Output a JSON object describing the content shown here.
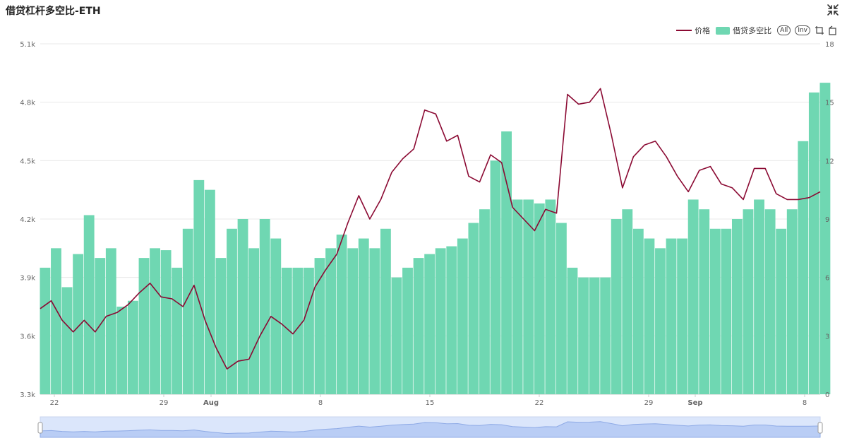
{
  "title": "借贷杠杆多空比-ETH",
  "legend": {
    "price_label": "价格",
    "ratio_label": "借贷多空比",
    "all_label": "All",
    "inv_label": "Inv"
  },
  "colors": {
    "price": "#8b0a33",
    "ratio": "#6fd7b2",
    "grid": "#e8e8e8"
  },
  "icons": [
    "collapse-icon",
    "zoom-select-icon",
    "zoom-reset-icon"
  ],
  "chart_data": {
    "type": "bar+line",
    "x_tick_labels": [
      "22",
      "29",
      "Aug",
      "8",
      "15",
      "22",
      "29",
      "Sep",
      "8"
    ],
    "y_left": {
      "lim": [
        3300,
        5100
      ],
      "ticks": [
        "3.3k",
        "3.6k",
        "3.9k",
        "4.2k",
        "4.5k",
        "4.8k",
        "5.1k"
      ]
    },
    "y_right": {
      "lim": [
        0,
        18
      ],
      "ticks": [
        "0",
        "3",
        "6",
        "9",
        "12",
        "15",
        "18"
      ]
    },
    "grid": true,
    "legend_position": "top-right",
    "series": [
      {
        "name": "价格",
        "type": "line",
        "axis": "left",
        "x": [
          0,
          2,
          4,
          6,
          8,
          10,
          12,
          14,
          16,
          18,
          20,
          22,
          24,
          26,
          28,
          30,
          32,
          34,
          36,
          38,
          40,
          42,
          44,
          46,
          48,
          50,
          52,
          54,
          56,
          58,
          60,
          62,
          64,
          66,
          68,
          70,
          72,
          74,
          76,
          78,
          80,
          82,
          84,
          86,
          88,
          90,
          92,
          94,
          96,
          98,
          100,
          102,
          104,
          106,
          108,
          110,
          112,
          114,
          116,
          118,
          120,
          122,
          124,
          126,
          128,
          130,
          132,
          134,
          136,
          138,
          140,
          142
        ],
        "values": [
          3740,
          3780,
          3680,
          3620,
          3680,
          3620,
          3700,
          3720,
          3760,
          3820,
          3870,
          3800,
          3790,
          3750,
          3860,
          3680,
          3540,
          3430,
          3470,
          3480,
          3600,
          3700,
          3660,
          3610,
          3680,
          3850,
          3940,
          4020,
          4180,
          4320,
          4200,
          4300,
          4440,
          4510,
          4560,
          4760,
          4740,
          4600,
          4630,
          4420,
          4390,
          4530,
          4490,
          4260,
          4200,
          4140,
          4250,
          4230,
          4840,
          4790,
          4800,
          4870,
          4630,
          4360,
          4520,
          4580,
          4600,
          4520,
          4420,
          4340,
          4450,
          4470,
          4380,
          4360,
          4300,
          4460,
          4460,
          4330,
          4300,
          4300,
          4310,
          4340
        ]
      },
      {
        "name": "借贷多空比",
        "type": "bar",
        "axis": "right",
        "x": [
          0,
          2,
          4,
          6,
          8,
          10,
          12,
          14,
          16,
          18,
          20,
          22,
          24,
          26,
          28,
          30,
          32,
          34,
          36,
          38,
          40,
          42,
          44,
          46,
          48,
          50,
          52,
          54,
          56,
          58,
          60,
          62,
          64,
          66,
          68,
          70,
          72,
          74,
          76,
          78,
          80,
          82,
          84,
          86,
          88,
          90,
          92,
          94,
          96,
          98,
          100,
          102,
          104,
          106,
          108,
          110,
          112,
          114,
          116,
          118,
          120,
          122,
          124,
          126,
          128,
          130,
          132,
          134,
          136,
          138,
          140,
          142
        ],
        "values": [
          6.5,
          7.5,
          5.5,
          7.2,
          9.2,
          7.0,
          7.5,
          4.5,
          4.8,
          7.0,
          7.5,
          7.4,
          6.5,
          8.5,
          11.0,
          10.5,
          7.0,
          8.5,
          9.0,
          7.5,
          9.0,
          8.0,
          6.5,
          6.5,
          6.5,
          7.0,
          7.5,
          8.2,
          7.5,
          8.0,
          7.5,
          8.5,
          6.0,
          6.5,
          7.0,
          7.2,
          7.5,
          7.6,
          8.0,
          8.8,
          9.5,
          12.0,
          13.5,
          10.0,
          10.0,
          9.8,
          10.0,
          8.8,
          6.5,
          6.0,
          6.0,
          6.0,
          9.0,
          9.5,
          8.5,
          8.0,
          7.5,
          8.0,
          8.0,
          10.0,
          9.5,
          8.5,
          8.5,
          9.0,
          9.5,
          10.0,
          9.5,
          8.5,
          9.5,
          13.0,
          15.5,
          16.0
        ]
      }
    ]
  }
}
